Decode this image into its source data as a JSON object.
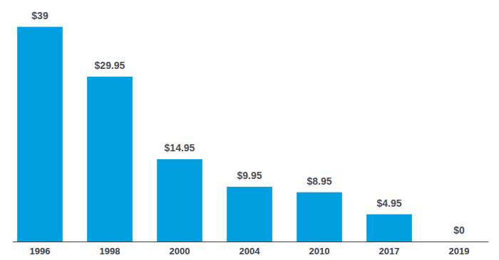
{
  "chart_data": {
    "type": "bar",
    "categories": [
      "1996",
      "1998",
      "2000",
      "2004",
      "2010",
      "2017",
      "2019"
    ],
    "values": [
      39,
      29.95,
      14.95,
      9.95,
      8.95,
      4.95,
      0
    ],
    "value_labels": [
      "$39",
      "$29.95",
      "$14.95",
      "$9.95",
      "$8.95",
      "$4.95",
      "$0"
    ],
    "color": "#019fdf",
    "ylim": [
      0,
      40
    ],
    "data_labels": true,
    "tick_labels": "x",
    "grid": false
  }
}
